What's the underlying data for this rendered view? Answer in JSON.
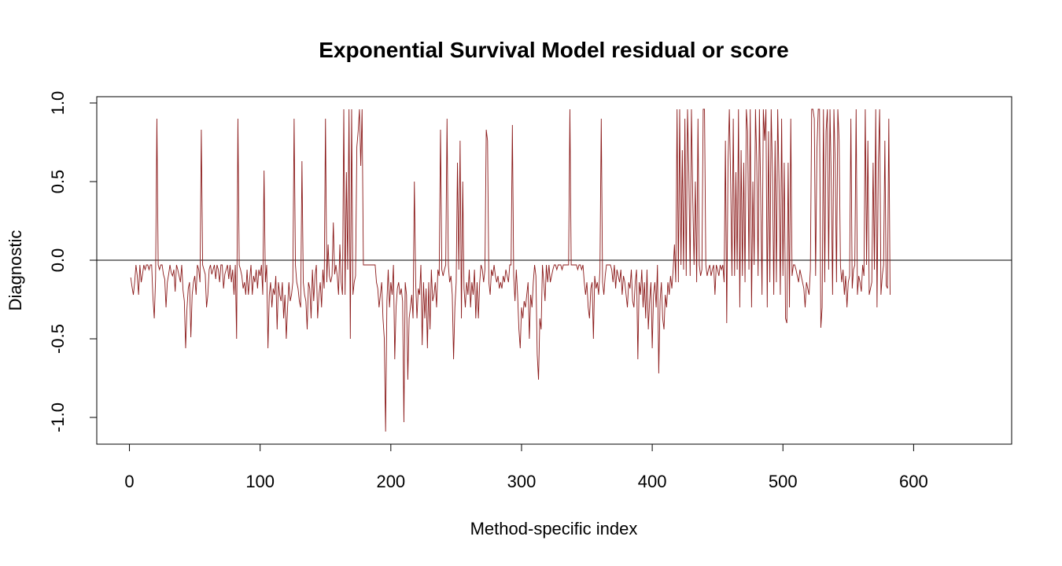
{
  "chart_data": {
    "type": "line",
    "title": "Exponential Survival Model residual or score",
    "xlabel": "Method-specific index",
    "ylabel": "Diagnostic",
    "xlim": [
      -25,
      675
    ],
    "ylim": [
      -1.17,
      1.04
    ],
    "x_ticks": [
      0,
      100,
      200,
      300,
      400,
      500,
      600
    ],
    "y_ticks": [
      -1.0,
      -0.5,
      0.0,
      0.5,
      1.0
    ],
    "y_tick_labels": [
      "-1.0",
      "-0.5",
      "0.0",
      "0.5",
      "1.0"
    ],
    "reference_line_y": 0,
    "line_color": "#8B1A1A",
    "grid": false,
    "legend": "none",
    "series": [
      {
        "x_start": 1,
        "x_step": 1,
        "values": [
          -0.11,
          -0.17,
          -0.22,
          -0.14,
          -0.03,
          -0.1,
          -0.22,
          -0.03,
          -0.14,
          -0.09,
          -0.03,
          -0.06,
          -0.03,
          -0.03,
          -0.06,
          -0.03,
          -0.03,
          -0.24,
          -0.37,
          -0.12,
          0.9,
          -0.03,
          -0.06,
          -0.03,
          -0.03,
          -0.09,
          -0.12,
          -0.3,
          -0.14,
          -0.09,
          -0.03,
          -0.08,
          -0.1,
          -0.06,
          -0.2,
          -0.03,
          -0.06,
          -0.1,
          -0.14,
          -0.03,
          -0.19,
          -0.26,
          -0.56,
          -0.31,
          -0.18,
          -0.14,
          -0.49,
          -0.22,
          -0.14,
          -0.1,
          -0.22,
          -0.03,
          -0.06,
          -0.14,
          0.83,
          -0.03,
          -0.06,
          -0.09,
          -0.3,
          -0.22,
          -0.06,
          -0.03,
          -0.09,
          -0.06,
          -0.03,
          -0.12,
          -0.03,
          -0.06,
          -0.14,
          -0.03,
          -0.03,
          -0.18,
          -0.09,
          -0.06,
          -0.03,
          -0.12,
          -0.03,
          -0.14,
          -0.06,
          -0.22,
          -0.03,
          -0.5,
          0.9,
          -0.03,
          -0.06,
          -0.1,
          -0.18,
          -0.14,
          -0.22,
          -0.06,
          -0.22,
          -0.12,
          -0.03,
          -0.22,
          -0.1,
          -0.14,
          -0.06,
          -0.18,
          -0.06,
          -0.1,
          -0.03,
          -0.22,
          0.57,
          -0.14,
          -0.03,
          -0.56,
          -0.22,
          -0.14,
          -0.3,
          -0.18,
          -0.22,
          -0.1,
          -0.44,
          -0.14,
          -0.22,
          -0.26,
          -0.14,
          -0.37,
          -0.22,
          -0.5,
          -0.3,
          -0.14,
          -0.26,
          -0.22,
          -0.14,
          0.9,
          -0.03,
          -0.14,
          -0.18,
          -0.26,
          -0.3,
          0.63,
          -0.14,
          -0.22,
          -0.26,
          -0.44,
          -0.14,
          -0.18,
          -0.37,
          -0.06,
          -0.26,
          -0.1,
          -0.03,
          -0.37,
          -0.22,
          -0.14,
          -0.3,
          -0.06,
          -0.18,
          0.9,
          -0.14,
          0.1,
          -0.1,
          -0.14,
          -0.1,
          0.24,
          -0.09,
          -0.03,
          -0.1,
          -0.22,
          0.1,
          -0.14,
          -0.22,
          0.96,
          -0.22,
          0.56,
          -0.06,
          0.96,
          -0.5,
          0.96,
          -0.22,
          -0.14,
          -0.1,
          0.72,
          0.82,
          0.96,
          0.6,
          0.96,
          -0.03,
          -0.03,
          -0.03,
          -0.03,
          -0.03,
          -0.03,
          -0.03,
          -0.03,
          -0.03,
          -0.03,
          -0.14,
          -0.18,
          -0.3,
          -0.22,
          -0.14,
          -0.37,
          -0.5,
          -1.09,
          -0.26,
          -0.06,
          -0.3,
          -0.14,
          -0.22,
          -0.03,
          -0.63,
          -0.3,
          -0.18,
          -0.14,
          -0.22,
          -0.18,
          -0.26,
          -1.03,
          -0.14,
          -0.22,
          -0.76,
          -0.37,
          -0.3,
          -0.22,
          -0.37,
          0.5,
          -0.14,
          -0.37,
          -0.18,
          -0.22,
          -0.03,
          -0.54,
          -0.14,
          -0.37,
          -0.18,
          -0.56,
          -0.14,
          -0.44,
          -0.06,
          -0.26,
          -0.22,
          -0.14,
          -0.3,
          -0.06,
          -0.1,
          0.83,
          -0.06,
          -0.1,
          -0.06,
          -0.03,
          0.9,
          -0.03,
          -0.14,
          -0.1,
          -0.22,
          -0.63,
          -0.3,
          -0.14,
          0.62,
          -0.06,
          0.76,
          -0.37,
          0.5,
          -0.18,
          -0.3,
          -0.14,
          -0.22,
          -0.06,
          -0.3,
          -0.14,
          -0.22,
          -0.06,
          -0.37,
          -0.14,
          -0.37,
          -0.14,
          -0.03,
          -0.06,
          -0.14,
          -0.06,
          0.83,
          0.76,
          -0.14,
          -0.22,
          -0.06,
          -0.1,
          -0.03,
          -0.1,
          -0.14,
          -0.1,
          -0.18,
          -0.14,
          -0.18,
          -0.1,
          -0.14,
          -0.06,
          -0.1,
          -0.14,
          -0.03,
          -0.03,
          0.86,
          -0.1,
          -0.26,
          -0.06,
          -0.22,
          -0.44,
          -0.56,
          -0.3,
          -0.37,
          -0.26,
          -0.3,
          -0.22,
          -0.14,
          -0.5,
          -0.22,
          -0.3,
          -0.14,
          -0.03,
          -0.1,
          -0.6,
          -0.76,
          -0.37,
          -0.44,
          -0.03,
          -0.14,
          -0.26,
          -0.03,
          -0.14,
          -0.03,
          -0.14,
          -0.1,
          -0.06,
          -0.03,
          -0.03,
          -0.06,
          -0.03,
          -0.03,
          -0.03,
          -0.06,
          -0.03,
          -0.03,
          -0.03,
          -0.03,
          -0.03,
          0.96,
          -0.03,
          -0.03,
          -0.03,
          -0.03,
          -0.03,
          -0.06,
          -0.03,
          -0.03,
          -0.06,
          -0.03,
          -0.14,
          -0.22,
          -0.14,
          -0.3,
          -0.37,
          -0.18,
          -0.14,
          -0.5,
          -0.1,
          -0.18,
          -0.14,
          -0.22,
          -0.06,
          0.9,
          -0.14,
          -0.22,
          -0.1,
          -0.03,
          -0.03,
          -0.03,
          -0.03,
          -0.06,
          -0.14,
          -0.03,
          -0.18,
          -0.06,
          -0.1,
          -0.14,
          -0.06,
          -0.22,
          -0.1,
          -0.14,
          -0.22,
          -0.3,
          -0.14,
          -0.18,
          -0.06,
          -0.26,
          -0.3,
          -0.14,
          -0.06,
          -0.63,
          -0.14,
          -0.22,
          -0.06,
          -0.3,
          -0.14,
          -0.37,
          -0.06,
          -0.44,
          -0.26,
          -0.14,
          -0.56,
          -0.22,
          -0.14,
          -0.3,
          -0.03,
          -0.72,
          -0.26,
          -0.14,
          -0.37,
          -0.44,
          -0.22,
          -0.3,
          -0.14,
          -0.22,
          -0.1,
          -0.18,
          -0.06,
          0.1,
          -0.14,
          0.96,
          -0.14,
          0.96,
          -0.03,
          0.7,
          -0.06,
          0.9,
          -0.1,
          0.96,
          0.56,
          -0.1,
          0.96,
          0.4,
          -0.03,
          0.5,
          -0.14,
          0.9,
          -0.03,
          -0.1,
          -0.06,
          0.96,
          0.96,
          -0.03,
          -0.1,
          -0.06,
          -0.03,
          -0.1,
          -0.06,
          -0.03,
          -0.22,
          -0.03,
          -0.06,
          -0.1,
          -0.03,
          -0.06,
          -0.03,
          -0.14,
          0.76,
          -0.4,
          0.62,
          0.96,
          0.5,
          -0.1,
          0.9,
          -0.1,
          0.56,
          -0.06,
          0.96,
          -0.3,
          0.7,
          -0.1,
          0.62,
          -0.14,
          0.96,
          0.82,
          -0.06,
          0.96,
          -0.3,
          0.5,
          -0.03,
          0.96,
          0.62,
          -0.1,
          0.96,
          0.4,
          -0.22,
          0.96,
          0.76,
          0.96,
          -0.3,
          0.82,
          -0.14,
          0.96,
          0.56,
          -0.22,
          0.76,
          -0.14,
          0.96,
          0.5,
          -0.22,
          0.9,
          -0.1,
          0.62,
          -0.37,
          -0.4,
          0.62,
          -0.3,
          0.9,
          -0.1,
          -0.03,
          -0.03,
          -0.06,
          -0.1,
          -0.14,
          -0.06,
          -0.1,
          -0.14,
          -0.18,
          -0.3,
          -0.14,
          -0.18,
          -0.22,
          -0.06,
          0.96,
          0.96,
          0.9,
          -0.1,
          0.7,
          0.96,
          0.96,
          -0.43,
          -0.3,
          0.96,
          -0.14,
          0.82,
          0.96,
          -0.06,
          0.96,
          0.5,
          -0.22,
          0.96,
          0.62,
          -0.14,
          0.96,
          0.76,
          -0.03,
          -0.14,
          -0.06,
          -0.22,
          -0.1,
          -0.3,
          -0.14,
          -0.1,
          0.9,
          -0.18,
          -0.06,
          -0.03,
          0.96,
          -0.22,
          -0.1,
          -0.14,
          -0.2,
          -0.03,
          -0.1,
          0.96,
          -0.03,
          0.76,
          -0.22,
          -0.18,
          -0.14,
          0.62,
          -0.06,
          0.96,
          -0.3,
          0.62,
          0.96,
          -0.22,
          -0.1,
          -0.03,
          0.76,
          -0.16,
          -0.18,
          0.9,
          -0.22
        ]
      }
    ]
  }
}
